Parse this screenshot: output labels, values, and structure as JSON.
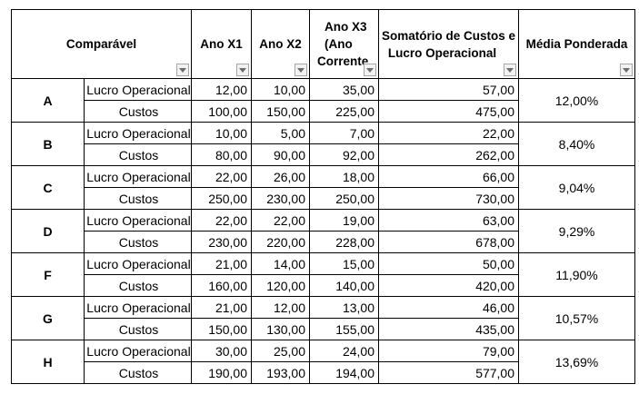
{
  "table": {
    "headers": {
      "comparavel": "Comparável",
      "x1": "Ano X1",
      "x2": "Ano X2",
      "x3_line1": "Ano X3",
      "x3_line2": "(Ano",
      "x3_line3": "Corrente",
      "sum_line1": "Somatório de Custos e",
      "sum_line2": "Lucro Operacional",
      "media": "Média Ponderada"
    },
    "row_labels": {
      "profit": "Lucro Operacional",
      "costs": "Custos"
    },
    "groups": [
      {
        "letter": "A",
        "media": "12,00%",
        "profit": {
          "x1": "12,00",
          "x2": "10,00",
          "x3": "35,00",
          "sum": "57,00"
        },
        "costs": {
          "x1": "100,00",
          "x2": "150,00",
          "x3": "225,00",
          "sum": "475,00"
        }
      },
      {
        "letter": "B",
        "media": "8,40%",
        "profit": {
          "x1": "10,00",
          "x2": "5,00",
          "x3": "7,00",
          "sum": "22,00"
        },
        "costs": {
          "x1": "80,00",
          "x2": "90,00",
          "x3": "92,00",
          "sum": "262,00"
        }
      },
      {
        "letter": "C",
        "media": "9,04%",
        "profit": {
          "x1": "22,00",
          "x2": "26,00",
          "x3": "18,00",
          "sum": "66,00"
        },
        "costs": {
          "x1": "250,00",
          "x2": "230,00",
          "x3": "250,00",
          "sum": "730,00"
        }
      },
      {
        "letter": "D",
        "media": "9,29%",
        "profit": {
          "x1": "22,00",
          "x2": "22,00",
          "x3": "19,00",
          "sum": "63,00"
        },
        "costs": {
          "x1": "230,00",
          "x2": "220,00",
          "x3": "228,00",
          "sum": "678,00"
        }
      },
      {
        "letter": "F",
        "media": "11,90%",
        "profit": {
          "x1": "21,00",
          "x2": "14,00",
          "x3": "15,00",
          "sum": "50,00"
        },
        "costs": {
          "x1": "160,00",
          "x2": "120,00",
          "x3": "140,00",
          "sum": "420,00"
        }
      },
      {
        "letter": "G",
        "media": "10,57%",
        "profit": {
          "x1": "21,00",
          "x2": "12,00",
          "x3": "13,00",
          "sum": "46,00"
        },
        "costs": {
          "x1": "150,00",
          "x2": "130,00",
          "x3": "155,00",
          "sum": "435,00"
        }
      },
      {
        "letter": "H",
        "media": "13,69%",
        "profit": {
          "x1": "30,00",
          "x2": "25,00",
          "x3": "24,00",
          "sum": "79,00"
        },
        "costs": {
          "x1": "190,00",
          "x2": "193,00",
          "x3": "194,00",
          "sum": "577,00"
        }
      }
    ]
  },
  "icons": {
    "filter": "filter-dropdown-icon"
  },
  "colors": {
    "border": "#000000",
    "filter_button_bg": "#f2f2f2",
    "filter_button_border": "#a6a6a6",
    "filter_arrow": "#6b6b6b"
  }
}
